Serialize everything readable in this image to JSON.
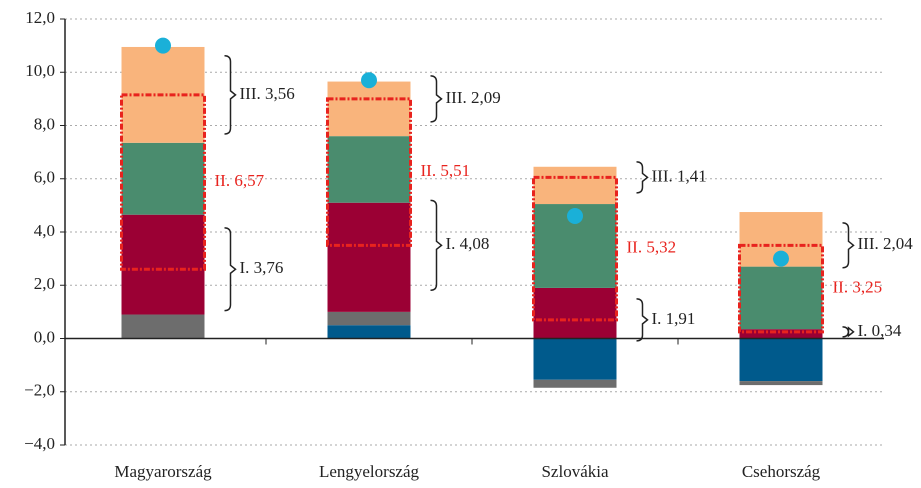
{
  "chart_data": {
    "type": "bar",
    "stacked": true,
    "categories": [
      "Magyarország",
      "Lengyelország",
      "Szlovákia",
      "Csehország"
    ],
    "series": [
      {
        "color": "#005a8c",
        "values": [
          0,
          0.5,
          -1.55,
          -1.6
        ]
      },
      {
        "color": "#6d6d6d",
        "values": [
          0.9,
          0.5,
          -0.3,
          -0.15
        ]
      },
      {
        "color": "#9b0034",
        "values": [
          3.75,
          4.1,
          1.9,
          0.35
        ]
      },
      {
        "color": "#4a8c6e",
        "values": [
          2.7,
          2.5,
          3.15,
          2.35
        ]
      },
      {
        "color": "#f9b47c",
        "values": [
          3.6,
          2.05,
          1.4,
          2.05
        ]
      }
    ],
    "points": {
      "color": "#1ab0d8",
      "values": [
        11.0,
        9.7,
        4.6,
        3.0
      ]
    },
    "ranges": {
      "color": "#e8231e",
      "low": [
        2.6,
        3.5,
        0.7,
        0.25
      ],
      "high": [
        9.15,
        9.0,
        6.05,
        3.5
      ]
    },
    "annotations": [
      [
        {
          "label": "III. 3,56",
          "value": 3.56
        },
        {
          "label": "II. 6,57",
          "value": 6.57
        },
        {
          "label": "I. 3,76",
          "value": 3.76
        }
      ],
      [
        {
          "label": "III. 2,09",
          "value": 2.09
        },
        {
          "label": "II. 5,51",
          "value": 5.51
        },
        {
          "label": "I. 4,08",
          "value": 4.08
        }
      ],
      [
        {
          "label": "III. 1,41",
          "value": 1.41
        },
        {
          "label": "II. 5,32",
          "value": 5.32
        },
        {
          "label": "I. 1,91",
          "value": 1.91
        }
      ],
      [
        {
          "label": "III. 2,04",
          "value": 2.04
        },
        {
          "label": "II. 3,25",
          "value": 3.25
        },
        {
          "label": "I. 0,34",
          "value": 0.34
        }
      ]
    ],
    "ylim": [
      -4,
      12
    ],
    "yticks": [
      {
        "value": -4,
        "label": "−4,0"
      },
      {
        "value": -2,
        "label": "−2,0"
      },
      {
        "value": 0,
        "label": "0,0"
      },
      {
        "value": 2,
        "label": "2,0"
      },
      {
        "value": 4,
        "label": "4,0"
      },
      {
        "value": 6,
        "label": "6,0"
      },
      {
        "value": 8,
        "label": "8,0"
      },
      {
        "value": 10,
        "label": "10,0"
      },
      {
        "value": 12,
        "label": "12,0"
      }
    ],
    "grid": true
  }
}
